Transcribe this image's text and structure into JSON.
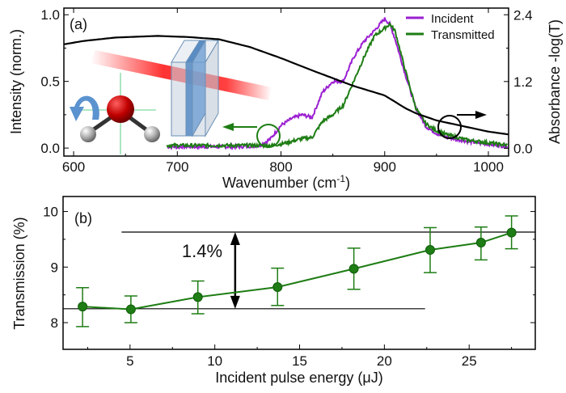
{
  "colors": {
    "incident": "#9b1fd1",
    "transmitted": "#1e7d14",
    "absorbance": "#000000",
    "points": "#1e7d14"
  },
  "chart_data": [
    {
      "type": "line",
      "panel_label": "(a)",
      "xlabel": "Wavenumber (cm",
      "xlabel_sup": "-1",
      "xlabel_end": ")",
      "ylabel": "Intensity (norm.)",
      "ylabel_right": "Absorbance -log(T)",
      "xlim": [
        590.6,
        1019.5
      ],
      "ylim": [
        -0.06,
        1.05
      ],
      "ylim_right": [
        -0.14,
        2.52
      ],
      "xticks": [
        600,
        700,
        800,
        900,
        1000
      ],
      "yticks": [
        "0.0",
        "0.5",
        "1.0"
      ],
      "yticks_right": [
        "0.0",
        "1.2",
        "2.4"
      ],
      "legend_position": "top-right",
      "series": [
        {
          "name": "Incident",
          "axis": "left",
          "color": "#9b1fd1",
          "x": [
            690,
            700,
            720,
            740,
            760,
            780,
            790,
            800,
            810,
            820,
            830,
            840,
            850,
            860,
            870,
            880,
            890,
            900,
            905,
            910,
            920,
            930,
            940,
            950,
            960,
            980,
            1000,
            1019
          ],
          "y": [
            0.01,
            0.01,
            0.01,
            0.01,
            0.01,
            0.02,
            0.07,
            0.17,
            0.22,
            0.25,
            0.23,
            0.42,
            0.5,
            0.5,
            0.68,
            0.8,
            0.88,
            0.97,
            0.93,
            0.82,
            0.55,
            0.3,
            0.16,
            0.11,
            0.08,
            0.05,
            0.03,
            0.01
          ]
        },
        {
          "name": "Transmitted",
          "axis": "left",
          "color": "#1e7d14",
          "x": [
            690,
            700,
            720,
            740,
            760,
            780,
            790,
            800,
            810,
            820,
            830,
            840,
            850,
            860,
            870,
            880,
            890,
            900,
            905,
            910,
            920,
            930,
            940,
            950,
            960,
            980,
            1000,
            1019
          ],
          "y": [
            0.02,
            0.02,
            0.02,
            0.02,
            0.02,
            0.02,
            0.02,
            0.03,
            0.05,
            0.07,
            0.08,
            0.2,
            0.25,
            0.32,
            0.5,
            0.68,
            0.84,
            0.9,
            0.93,
            0.88,
            0.58,
            0.3,
            0.18,
            0.13,
            0.1,
            0.06,
            0.04,
            0.02
          ]
        },
        {
          "axis": "right",
          "color": "#000000",
          "x": [
            591,
            610,
            640,
            680,
            710,
            740,
            770,
            800,
            830,
            850,
            870,
            900,
            920,
            930,
            950,
            980,
            1000,
            1019
          ],
          "y": [
            1.87,
            1.93,
            1.99,
            2.02,
            2.0,
            1.96,
            1.82,
            1.62,
            1.4,
            1.26,
            1.12,
            0.95,
            0.72,
            0.63,
            0.5,
            0.38,
            0.3,
            0.25
          ]
        }
      ]
    },
    {
      "type": "scatter",
      "panel_label": "(b)",
      "xlabel": "Incident pulse energy (μJ)",
      "ylabel": "Transmission (%)",
      "xlim": [
        1.05,
        28.9
      ],
      "ylim": [
        7.52,
        10.27
      ],
      "xticks": [
        5,
        10,
        15,
        20,
        25
      ],
      "yticks": [
        8,
        9,
        10
      ],
      "series": [
        {
          "color": "#1e7d14",
          "connected": true,
          "x": [
            2.2,
            5.05,
            9.0,
            13.7,
            18.2,
            22.7,
            25.7,
            27.5
          ],
          "y": [
            8.29,
            8.24,
            8.46,
            8.64,
            8.97,
            9.31,
            9.44,
            9.62
          ],
          "err_high": [
            8.63,
            8.48,
            8.75,
            8.98,
            9.34,
            9.71,
            9.72,
            9.92
          ],
          "err_low": [
            7.93,
            8.0,
            8.16,
            8.31,
            8.6,
            8.9,
            9.13,
            9.33
          ]
        }
      ],
      "reference_lines": [
        {
          "y": 9.63,
          "x_from": 4.5,
          "x_to": 28.9
        },
        {
          "y": 8.25,
          "x_from": 1.05,
          "x_to": 22.4
        }
      ],
      "annotation": {
        "text": "1.4%",
        "arrow_x": 11.2,
        "from": 8.25,
        "to": 9.63
      }
    }
  ]
}
